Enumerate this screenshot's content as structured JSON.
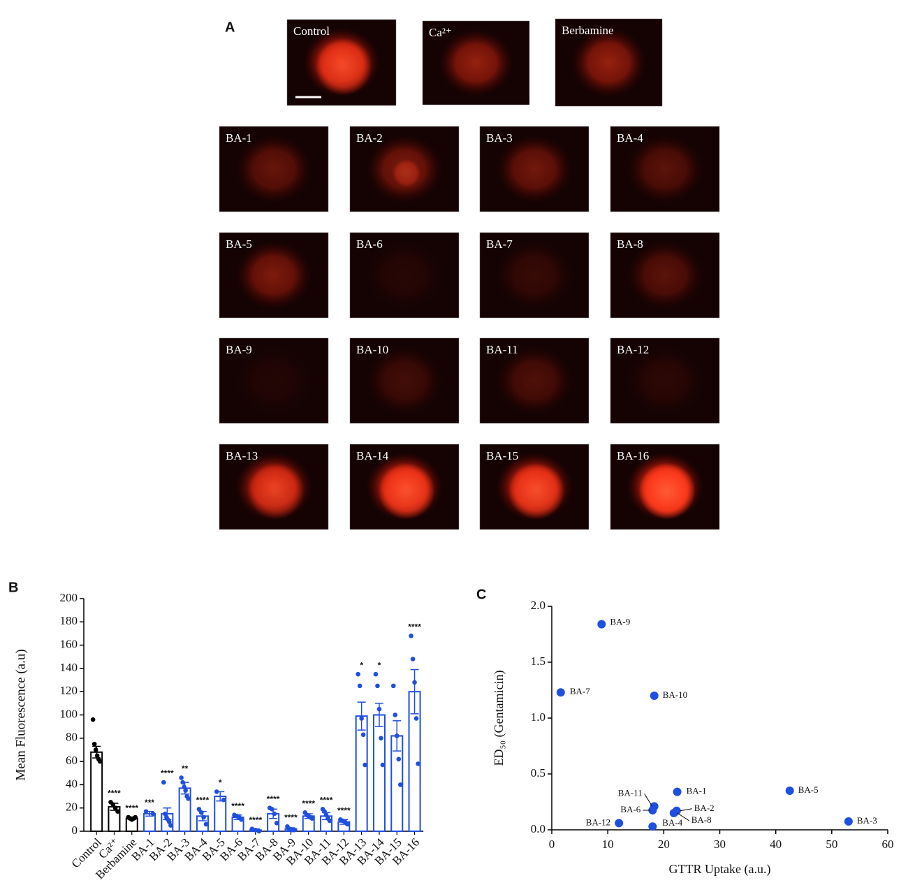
{
  "panel_a": {
    "label": "A",
    "images": [
      "Control",
      "Ca²⁺",
      "Berbamine",
      "BA-1",
      "BA-2",
      "BA-3",
      "BA-4",
      "BA-5",
      "BA-6",
      "BA-7",
      "BA-8",
      "BA-9",
      "BA-10",
      "BA-11",
      "BA-12",
      "BA-13",
      "BA-14",
      "BA-15",
      "BA-16"
    ]
  },
  "chart_data": [
    {
      "type": "bar",
      "panel_label": "B",
      "y_label": "Mean Fluorescence (a.u)",
      "categories": [
        "Control",
        "Ca²⁺",
        "Berbamine",
        "BA-1",
        "BA-2",
        "BA-3",
        "BA-4",
        "BA-5",
        "BA-6",
        "BA-7",
        "BA-8",
        "BA-9",
        "BA-10",
        "BA-11",
        "BA-12",
        "BA-13",
        "BA-14",
        "BA-15",
        "BA-16"
      ],
      "values": [
        68,
        21,
        11,
        15,
        15,
        37,
        13,
        30,
        12,
        1,
        15,
        2,
        13,
        13,
        8,
        99,
        100,
        82,
        120
      ],
      "errors": [
        5,
        3,
        1,
        2,
        5,
        5,
        4,
        4,
        2,
        1,
        4,
        1,
        2,
        3,
        2,
        12,
        10,
        13,
        19
      ],
      "points": [
        [
          96,
          75,
          70,
          65,
          62,
          60
        ],
        [
          25,
          23,
          20,
          17
        ],
        [
          12,
          11,
          10,
          11,
          12
        ],
        [
          17,
          15
        ],
        [
          42,
          15,
          12,
          10,
          8,
          5
        ],
        [
          46,
          42,
          38,
          35,
          30,
          28
        ],
        [
          19,
          16,
          12,
          6
        ],
        [
          34,
          27
        ],
        [
          14,
          13,
          12,
          10
        ],
        [
          2,
          1,
          0
        ],
        [
          20,
          19,
          15,
          7
        ],
        [
          4,
          2,
          1,
          1
        ],
        [
          16,
          14,
          13,
          12,
          11
        ],
        [
          19,
          17,
          14,
          11,
          9
        ],
        [
          10,
          9,
          8,
          6
        ],
        [
          135,
          125,
          97,
          83,
          57
        ],
        [
          135,
          125,
          105,
          80,
          57
        ],
        [
          125,
          100,
          82,
          62,
          40
        ],
        [
          168,
          148,
          128,
          97,
          58
        ]
      ],
      "significance": [
        null,
        "****",
        "****",
        "***",
        "****",
        "**",
        "****",
        "*",
        "****",
        "****",
        "****",
        "****",
        "****",
        "****",
        "****",
        "*",
        "*",
        null,
        "****"
      ],
      "bar_colors": [
        "#000000",
        "#000000",
        "#000000",
        "#1f4fe0",
        "#1f4fe0",
        "#1f4fe0",
        "#1f4fe0",
        "#1f4fe0",
        "#1f4fe0",
        "#1f4fe0",
        "#1f4fe0",
        "#1f4fe0",
        "#1f4fe0",
        "#1f4fe0",
        "#1f4fe0",
        "#1f4fe0",
        "#1f4fe0",
        "#1f4fe0",
        "#1f4fe0"
      ],
      "ylim": [
        0,
        200
      ],
      "yticks": [
        0,
        20,
        40,
        60,
        80,
        100,
        120,
        140,
        160,
        180,
        200
      ]
    },
    {
      "type": "scatter",
      "panel_label": "C",
      "x_label": "GTTR Uptake (a.u.)",
      "y_label": "ED₅₀ (Gentamicin)",
      "labels": [
        "BA-1",
        "BA-2",
        "BA-3",
        "BA-4",
        "BA-5",
        "BA-6",
        "BA-7",
        "BA-8",
        "BA-9",
        "BA-10",
        "BA-11",
        "BA-12"
      ],
      "x": [
        22.4,
        22.3,
        53.0,
        18.0,
        42.5,
        18.0,
        1.6,
        21.8,
        8.9,
        18.3,
        18.3,
        12.0
      ],
      "y": [
        0.34,
        0.17,
        0.075,
        0.03,
        0.35,
        0.175,
        1.23,
        0.15,
        1.84,
        1.2,
        0.21,
        0.06
      ],
      "color": "#1f4fe0",
      "xlim": [
        0,
        60
      ],
      "xticks": [
        0,
        10,
        20,
        30,
        40,
        50,
        60
      ],
      "ylim": [
        0,
        2.0
      ],
      "yticks": [
        {
          "value": 0,
          "label": "0.0"
        },
        0.5,
        {
          "value": 1,
          "label": "1.0"
        },
        1.5,
        {
          "value": 2,
          "label": "2.0"
        }
      ]
    }
  ]
}
